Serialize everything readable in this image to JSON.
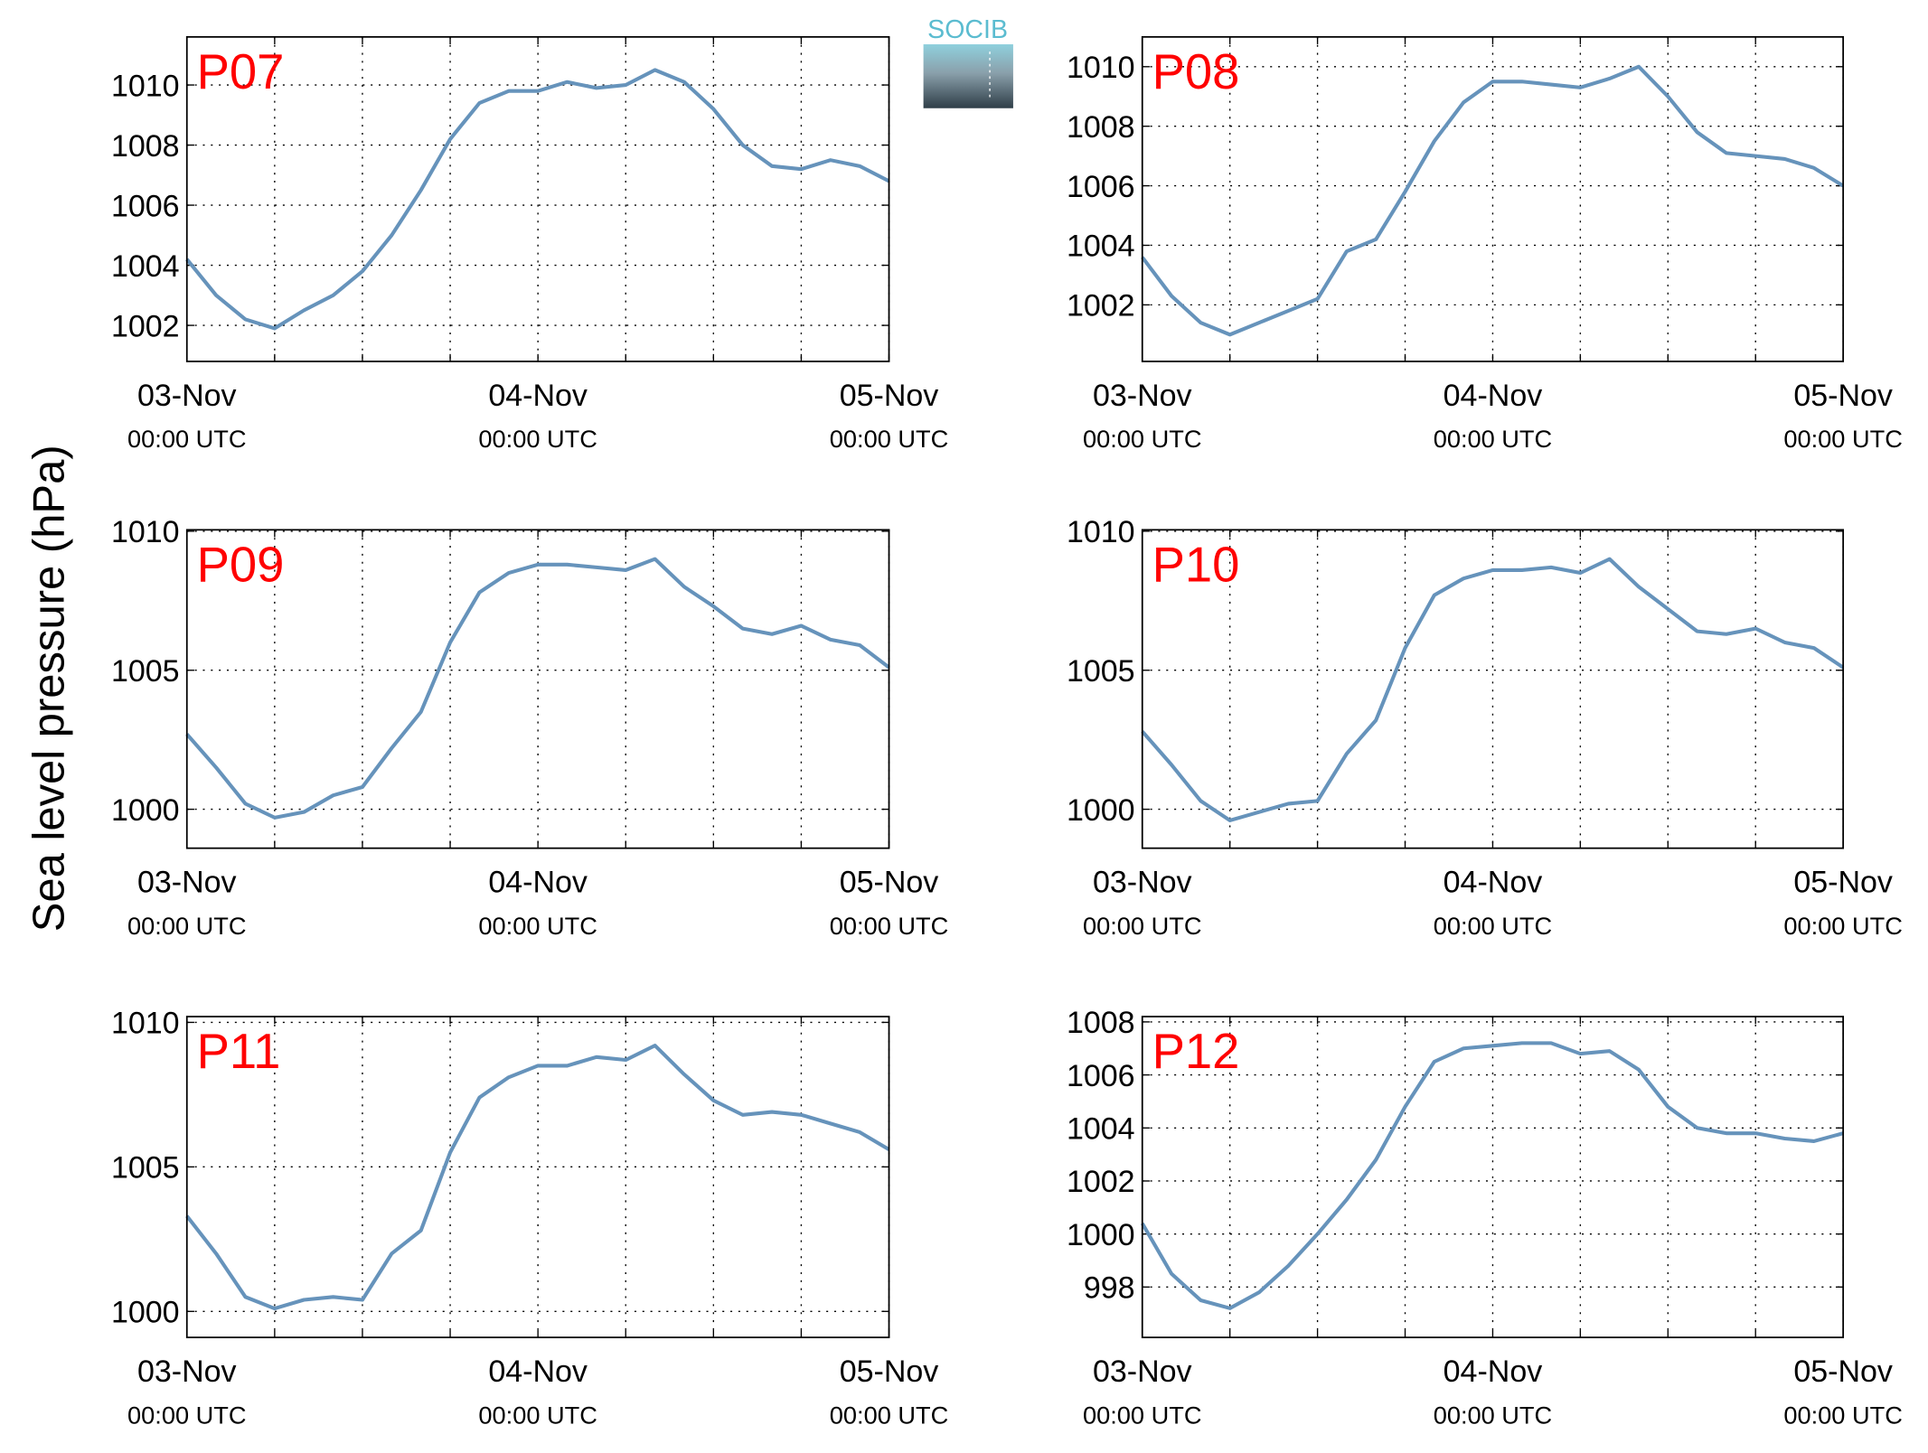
{
  "ylabel": "Sea level pressure (hPa)",
  "logo": "SOCIB",
  "chart_data": [
    {
      "type": "line",
      "title": "P07",
      "title_color": "#ff0000",
      "grid": true,
      "x": [
        0,
        2,
        4,
        6,
        8,
        10,
        12,
        14,
        16,
        18,
        20,
        22,
        24,
        26,
        28,
        30,
        32,
        34,
        36,
        38,
        40,
        42,
        44,
        46,
        48
      ],
      "xlim": [
        0,
        48
      ],
      "xticks": [
        {
          "value": 0,
          "label": "03-Nov\n00:00 UTC"
        },
        {
          "value": 6,
          "label": null
        },
        {
          "value": 12,
          "label": null
        },
        {
          "value": 18,
          "label": null
        },
        {
          "value": 24,
          "label": "04-Nov\n00:00 UTC"
        },
        {
          "value": 30,
          "label": null
        },
        {
          "value": 36,
          "label": null
        },
        {
          "value": 42,
          "label": null
        },
        {
          "value": 48,
          "label": "05-Nov\n00:00 UTC"
        }
      ],
      "ylim": [
        1000.8,
        1011.6
      ],
      "yticks": [
        1002,
        1004,
        1006,
        1008,
        1010
      ],
      "series": [
        {
          "color": "#6693bb",
          "values": [
            1004.2,
            1003.0,
            1002.2,
            1001.9,
            1002.5,
            1003.0,
            1003.8,
            1005.0,
            1006.5,
            1008.2,
            1009.4,
            1009.8,
            1009.8,
            1010.1,
            1009.9,
            1010.0,
            1010.5,
            1010.1,
            1009.2,
            1008.0,
            1007.3,
            1007.2,
            1007.5,
            1007.3,
            1006.8
          ]
        }
      ]
    },
    {
      "type": "line",
      "title": "P08",
      "title_color": "#ff0000",
      "grid": true,
      "x": [
        0,
        2,
        4,
        6,
        8,
        10,
        12,
        14,
        16,
        18,
        20,
        22,
        24,
        26,
        28,
        30,
        32,
        34,
        36,
        38,
        40,
        42,
        44,
        46,
        48
      ],
      "xlim": [
        0,
        48
      ],
      "xticks": [
        {
          "value": 0,
          "label": "03-Nov\n00:00 UTC"
        },
        {
          "value": 6,
          "label": null
        },
        {
          "value": 12,
          "label": null
        },
        {
          "value": 18,
          "label": null
        },
        {
          "value": 24,
          "label": "04-Nov\n00:00 UTC"
        },
        {
          "value": 30,
          "label": null
        },
        {
          "value": 36,
          "label": null
        },
        {
          "value": 42,
          "label": null
        },
        {
          "value": 48,
          "label": "05-Nov\n00:00 UTC"
        }
      ],
      "ylim": [
        1000.1,
        1011.0
      ],
      "yticks": [
        1002,
        1004,
        1006,
        1008,
        1010
      ],
      "series": [
        {
          "color": "#6693bb",
          "values": [
            1003.6,
            1002.3,
            1001.4,
            1001.0,
            1001.4,
            1001.8,
            1002.2,
            1003.8,
            1004.2,
            1005.8,
            1007.5,
            1008.8,
            1009.5,
            1009.5,
            1009.4,
            1009.3,
            1009.6,
            1010.0,
            1009.0,
            1007.8,
            1007.1,
            1007.0,
            1006.9,
            1006.6,
            1006.0
          ]
        }
      ]
    },
    {
      "type": "line",
      "title": "P09",
      "title_color": "#ff0000",
      "grid": true,
      "x": [
        0,
        2,
        4,
        6,
        8,
        10,
        12,
        14,
        16,
        18,
        20,
        22,
        24,
        26,
        28,
        30,
        32,
        34,
        36,
        38,
        40,
        42,
        44,
        46,
        48
      ],
      "xlim": [
        0,
        48
      ],
      "xticks": [
        {
          "value": 0,
          "label": "03-Nov\n00:00 UTC"
        },
        {
          "value": 6,
          "label": null
        },
        {
          "value": 12,
          "label": null
        },
        {
          "value": 18,
          "label": null
        },
        {
          "value": 24,
          "label": "04-Nov\n00:00 UTC"
        },
        {
          "value": 30,
          "label": null
        },
        {
          "value": 36,
          "label": null
        },
        {
          "value": 42,
          "label": null
        },
        {
          "value": 48,
          "label": "05-Nov\n00:00 UTC"
        }
      ],
      "ylim": [
        998.6,
        1010.05
      ],
      "yticks": [
        1000,
        1005,
        1010
      ],
      "series": [
        {
          "color": "#6693bb",
          "values": [
            1002.7,
            1001.5,
            1000.2,
            999.7,
            999.9,
            1000.5,
            1000.8,
            1002.2,
            1003.5,
            1006.0,
            1007.8,
            1008.5,
            1008.8,
            1008.8,
            1008.7,
            1008.6,
            1009.0,
            1008.0,
            1007.3,
            1006.5,
            1006.3,
            1006.6,
            1006.1,
            1005.9,
            1005.1
          ]
        }
      ]
    },
    {
      "type": "line",
      "title": "P10",
      "title_color": "#ff0000",
      "grid": true,
      "x": [
        0,
        2,
        4,
        6,
        8,
        10,
        12,
        14,
        16,
        18,
        20,
        22,
        24,
        26,
        28,
        30,
        32,
        34,
        36,
        38,
        40,
        42,
        44,
        46,
        48
      ],
      "xlim": [
        0,
        48
      ],
      "xticks": [
        {
          "value": 0,
          "label": "03-Nov\n00:00 UTC"
        },
        {
          "value": 6,
          "label": null
        },
        {
          "value": 12,
          "label": null
        },
        {
          "value": 18,
          "label": null
        },
        {
          "value": 24,
          "label": "04-Nov\n00:00 UTC"
        },
        {
          "value": 30,
          "label": null
        },
        {
          "value": 36,
          "label": null
        },
        {
          "value": 42,
          "label": null
        },
        {
          "value": 48,
          "label": "05-Nov\n00:00 UTC"
        }
      ],
      "ylim": [
        998.6,
        1010.05
      ],
      "yticks": [
        1000,
        1005,
        1010
      ],
      "series": [
        {
          "color": "#6693bb",
          "values": [
            1002.8,
            1001.6,
            1000.3,
            999.6,
            999.9,
            1000.2,
            1000.3,
            1002.0,
            1003.2,
            1005.8,
            1007.7,
            1008.3,
            1008.6,
            1008.6,
            1008.7,
            1008.5,
            1009.0,
            1008.0,
            1007.2,
            1006.4,
            1006.3,
            1006.5,
            1006.0,
            1005.8,
            1005.1
          ]
        }
      ]
    },
    {
      "type": "line",
      "title": "P11",
      "title_color": "#ff0000",
      "grid": true,
      "x": [
        0,
        2,
        4,
        6,
        8,
        10,
        12,
        14,
        16,
        18,
        20,
        22,
        24,
        26,
        28,
        30,
        32,
        34,
        36,
        38,
        40,
        42,
        44,
        46,
        48
      ],
      "xlim": [
        0,
        48
      ],
      "xticks": [
        {
          "value": 0,
          "label": "03-Nov\n00:00 UTC"
        },
        {
          "value": 6,
          "label": null
        },
        {
          "value": 12,
          "label": null
        },
        {
          "value": 18,
          "label": null
        },
        {
          "value": 24,
          "label": "04-Nov\n00:00 UTC"
        },
        {
          "value": 30,
          "label": null
        },
        {
          "value": 36,
          "label": null
        },
        {
          "value": 42,
          "label": null
        },
        {
          "value": 48,
          "label": "05-Nov\n00:00 UTC"
        }
      ],
      "ylim": [
        999.1,
        1010.2
      ],
      "yticks": [
        1000,
        1005,
        1010
      ],
      "series": [
        {
          "color": "#6693bb",
          "values": [
            1003.3,
            1002.0,
            1000.5,
            1000.1,
            1000.4,
            1000.5,
            1000.4,
            1002.0,
            1002.8,
            1005.5,
            1007.4,
            1008.1,
            1008.5,
            1008.5,
            1008.8,
            1008.7,
            1009.2,
            1008.2,
            1007.3,
            1006.8,
            1006.9,
            1006.8,
            1006.5,
            1006.2,
            1005.6
          ]
        }
      ]
    },
    {
      "type": "line",
      "title": "P12",
      "title_color": "#ff0000",
      "grid": true,
      "x": [
        0,
        2,
        4,
        6,
        8,
        10,
        12,
        14,
        16,
        18,
        20,
        22,
        24,
        26,
        28,
        30,
        32,
        34,
        36,
        38,
        40,
        42,
        44,
        46,
        48
      ],
      "xlim": [
        0,
        48
      ],
      "xticks": [
        {
          "value": 0,
          "label": "03-Nov\n00:00 UTC"
        },
        {
          "value": 6,
          "label": null
        },
        {
          "value": 12,
          "label": null
        },
        {
          "value": 18,
          "label": null
        },
        {
          "value": 24,
          "label": "04-Nov\n00:00 UTC"
        },
        {
          "value": 30,
          "label": null
        },
        {
          "value": 36,
          "label": null
        },
        {
          "value": 42,
          "label": null
        },
        {
          "value": 48,
          "label": "05-Nov\n00:00 UTC"
        }
      ],
      "ylim": [
        996.1,
        1008.2
      ],
      "yticks": [
        998,
        1000,
        1002,
        1004,
        1006,
        1008
      ],
      "series": [
        {
          "color": "#6693bb",
          "values": [
            1000.4,
            998.5,
            997.5,
            997.2,
            997.8,
            998.8,
            1000.0,
            1001.3,
            1002.8,
            1004.8,
            1006.5,
            1007.0,
            1007.1,
            1007.2,
            1007.2,
            1006.8,
            1006.9,
            1006.2,
            1004.8,
            1004.0,
            1003.8,
            1003.8,
            1003.6,
            1003.5,
            1003.8
          ]
        }
      ]
    }
  ]
}
